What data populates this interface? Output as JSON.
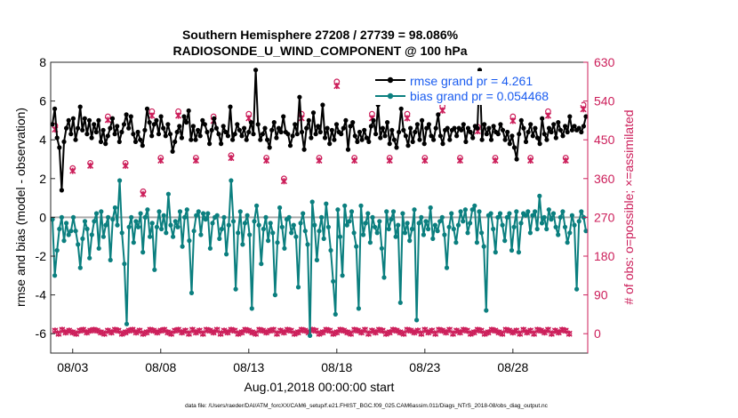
{
  "chart_data": {
    "type": "line",
    "title": "Southern Hemisphere 27208 / 27739 = 98.086%",
    "subtitle": "RADIOSONDE_U_WIND_COMPONENT @ 100 hPa",
    "xlabel": "Aug.01,2018 00:00:00 start",
    "ylabel_left": "rmse and bias (model - observation)",
    "ylabel_right": "# of obs: o=possible; ×=assimilated",
    "footnote": "data file: /Users/raeder/DAI/ATM_forcXX/CAM6_setup/f.e21.FHIST_BGC.f09_025.CAM6assim.011/Diags_NTrS_2018-08/obs_diag_output.nc",
    "ylim_left": [
      -7,
      8
    ],
    "yticks_left": [
      -6,
      -4,
      -2,
      0,
      2,
      4,
      6,
      8
    ],
    "ylim_right": [
      -45,
      630
    ],
    "yticks_right": [
      0,
      90,
      180,
      270,
      360,
      450,
      540,
      630
    ],
    "xlim_days": [
      0.75,
      31.25
    ],
    "xticks": [
      {
        "day": 2.0,
        "label": "08/03"
      },
      {
        "day": 7.0,
        "label": "08/08"
      },
      {
        "day": 12.0,
        "label": "08/13"
      },
      {
        "day": 17.0,
        "label": "08/18"
      },
      {
        "day": 22.0,
        "label": "08/23"
      },
      {
        "day": 27.0,
        "label": "08/28"
      }
    ],
    "zero_line": 0,
    "colors": {
      "rmse": "#000000",
      "bias": "#0b7f7f",
      "obs": "#cc1e5a",
      "zero": "#aaaaaa",
      "legend_text": "#1a5cf0",
      "right_axis": "#cc1e5a"
    },
    "series": [
      {
        "name": "rmse grand pr = 4.261",
        "axis": "left",
        "values": [
          4.8,
          5.6,
          4.1,
          3.6,
          1.4,
          3.9,
          4.6,
          5.0,
          4.3,
          5.1,
          4.0,
          4.6,
          5.7,
          4.5,
          5.1,
          4.3,
          5.0,
          4.1,
          4.8,
          4.4,
          5.0,
          3.9,
          4.5,
          3.8,
          4.2,
          4.6,
          5.1,
          4.3,
          4.7,
          3.9,
          4.4,
          4.8,
          5.3,
          4.6,
          5.2,
          4.3,
          3.9,
          4.4,
          4.0,
          3.7,
          4.5,
          5.6,
          4.9,
          4.2,
          4.8,
          5.0,
          4.3,
          5.2,
          4.6,
          4.2,
          4.8,
          4.3,
          3.4,
          3.9,
          4.4,
          4.7,
          4.1,
          5.2,
          4.9,
          5.5,
          4.0,
          4.7,
          4.0,
          4.5,
          4.2,
          5.0,
          4.8,
          4.4,
          3.8,
          4.5,
          5.1,
          4.6,
          4.3,
          3.8,
          4.7,
          4.4,
          4.2,
          5.7,
          4.0,
          4.3,
          4.8,
          4.5,
          4.2,
          4.6,
          4.0,
          4.4,
          4.9,
          4.3,
          7.6,
          4.8,
          4.0,
          4.3,
          4.6,
          4.0,
          3.6,
          4.5,
          4.9,
          4.1,
          4.6,
          4.4,
          5.2,
          4.4,
          4.3,
          3.7,
          4.2,
          4.8,
          4.3,
          6.2,
          4.4,
          3.5,
          4.6,
          5.0,
          4.1,
          5.4,
          4.3,
          4.7,
          4.4,
          5.8,
          4.1,
          4.6,
          3.8,
          4.5,
          4.0,
          4.8,
          4.4,
          4.3,
          4.6,
          5.0,
          3.5,
          4.7,
          4.9,
          4.2,
          3.9,
          4.4,
          4.0,
          4.5,
          4.1,
          3.9,
          4.7,
          5.0,
          4.3,
          5.8,
          4.1,
          4.6,
          4.2,
          4.9,
          3.8,
          4.5,
          4.0,
          3.6,
          4.4,
          5.6,
          4.5,
          4.2,
          3.7,
          4.6,
          3.9,
          4.4,
          4.8,
          4.0,
          5.0,
          3.8,
          4.6,
          4.8,
          4.2,
          4.0,
          4.6,
          5.3,
          4.2,
          3.8,
          4.5,
          4.6,
          4.0,
          4.5,
          4.6,
          4.2,
          4.6,
          4.5,
          4.8,
          3.9,
          4.6,
          4.4,
          4.1,
          4.7,
          4.6,
          7.6,
          4.0,
          4.8,
          4.3,
          4.6,
          4.0,
          4.7,
          4.4,
          4.3,
          4.8,
          4.5,
          4.0,
          4.4,
          3.8,
          4.2,
          3.6,
          3.0,
          4.3,
          5.0,
          4.6,
          3.9,
          4.4,
          4.8,
          4.2,
          4.6,
          4.1,
          3.8,
          5.1,
          4.3,
          4.0,
          4.6,
          4.4,
          4.8,
          4.1,
          4.9,
          4.5,
          4.2,
          4.7,
          4.4,
          5.2,
          4.5,
          4.7,
          4.5,
          4.6,
          4.4,
          4.7,
          5.2
        ]
      },
      {
        "name": "bias grand pr = 0.054468",
        "axis": "left",
        "values": [
          -0.1,
          -3.0,
          -1.7,
          -0.6,
          0.0,
          -1.2,
          -0.3,
          -0.9,
          -0.7,
          0.0,
          -0.7,
          -1.4,
          -2.6,
          -1.1,
          -0.2,
          -0.6,
          -2.1,
          -0.9,
          -0.2,
          0.2,
          -1.6,
          0.3,
          -1.0,
          -0.4,
          0.0,
          -2.2,
          -0.1,
          0.5,
          -0.4,
          1.9,
          -0.8,
          -2.4,
          -5.5,
          -0.5,
          0.0,
          -1.3,
          -0.2,
          -0.5,
          0.2,
          -1.8,
          0.0,
          0.4,
          -1.0,
          -0.3,
          -2.7,
          -0.5,
          0.3,
          -0.6,
          0.1,
          -0.8,
          1.2,
          -0.4,
          -1.0,
          -0.2,
          -0.5,
          0.3,
          -1.5,
          0.0,
          0.4,
          -1.2,
          -3.9,
          -0.7,
          0.1,
          0.3,
          -0.9,
          0.2,
          -0.1,
          0.2,
          -1.6,
          -0.3,
          0.0,
          0.1,
          -1.1,
          -0.6,
          0.0,
          -1.9,
          -0.4,
          1.9,
          -0.2,
          -3.7,
          -0.8,
          0.3,
          -1.4,
          -0.3,
          0.1,
          -0.9,
          -4.7,
          -0.2,
          0.6,
          -0.4,
          -2.4,
          -0.6,
          0.0,
          -1.2,
          -0.3,
          -0.8,
          -4.0,
          -1.3,
          0.5,
          -0.5,
          -1.6,
          -0.1,
          0.0,
          -0.8,
          -0.4,
          -1.0,
          -3.6,
          -0.3,
          0.2,
          -0.7,
          -1.4,
          -6.1,
          0.8,
          -0.4,
          -2.2,
          -0.7,
          0.0,
          -1.1,
          0.7,
          -0.5,
          -1.7,
          -3.3,
          -5.0,
          0.4,
          -1.0,
          -3.0,
          0.6,
          -0.4,
          -0.2,
          0.3,
          -0.8,
          -1.5,
          -4.7,
          0.6,
          -0.9,
          -0.3,
          0.2,
          -1.3,
          0.0,
          -0.5,
          -0.8,
          -0.2,
          -1.6,
          -3.1,
          0.3,
          -0.6,
          -0.1,
          0.3,
          -1.0,
          -0.4,
          -4.4,
          0.2,
          -0.8,
          -0.3,
          -1.2,
          -0.6,
          0.4,
          -5.3,
          -0.3,
          0.0,
          -0.9,
          -0.2,
          -0.6,
          0.5,
          -1.1,
          -0.4,
          -0.7,
          -0.2,
          0.0,
          -0.9,
          -2.6,
          -0.5,
          0.2,
          -0.6,
          -1.3,
          -0.4,
          0.3,
          -0.2,
          0.4,
          -0.8,
          -0.3,
          0.4,
          0.6,
          -1.3,
          0.3,
          -0.8,
          -1.5,
          -4.8,
          0.1,
          0.2,
          -0.6,
          -1.8,
          0.0,
          0.2,
          -0.4,
          -1.2,
          0.0,
          0.2,
          -1.7,
          -0.5,
          0.3,
          -1.8,
          -0.3,
          0.2,
          0.1,
          0.3,
          -0.8,
          0.1,
          0.3,
          -0.6,
          1.1,
          -0.3,
          0.0,
          -0.6,
          0.4,
          -0.1,
          0.2,
          -0.5,
          -0.9,
          0.0,
          0.3,
          -0.5,
          -1.3,
          -0.8,
          0.1,
          -0.4,
          -3.7,
          -0.2,
          0.3,
          0.0,
          -0.7
        ]
      },
      {
        "name": "# obs possible (pulse values)",
        "axis": "right",
        "note": "pairs [day, count] for the 12Z pulse; other soundings near 0",
        "values": [
          [
            1.0,
            483
          ],
          [
            2.0,
            384
          ],
          [
            3.0,
            396
          ],
          [
            4.0,
            504
          ],
          [
            5.0,
            396
          ],
          [
            6.0,
            330
          ],
          [
            6.5,
            516
          ],
          [
            7.0,
            408
          ],
          [
            8.0,
            516
          ],
          [
            9.0,
            408
          ],
          [
            10.0,
            504
          ],
          [
            11.0,
            414
          ],
          [
            12.0,
            510
          ],
          [
            13.0,
            408
          ],
          [
            14.0,
            360
          ],
          [
            15.0,
            510
          ],
          [
            16.0,
            408
          ],
          [
            17.0,
            585
          ],
          [
            18.0,
            408
          ],
          [
            19.0,
            510
          ],
          [
            20.0,
            408
          ],
          [
            21.0,
            510
          ],
          [
            22.0,
            408
          ],
          [
            23.0,
            528
          ],
          [
            24.0,
            408
          ],
          [
            25.0,
            480
          ],
          [
            26.0,
            408
          ],
          [
            27.0,
            504
          ],
          [
            28.0,
            408
          ],
          [
            29.0,
            516
          ],
          [
            30.0,
            408
          ],
          [
            31.0,
            531
          ]
        ]
      },
      {
        "name": "# obs assimilated (pulse values)",
        "axis": "right",
        "note": "pairs [day, count]",
        "values": [
          [
            1.0,
            474
          ],
          [
            2.0,
            378
          ],
          [
            3.0,
            390
          ],
          [
            4.0,
            496
          ],
          [
            5.0,
            390
          ],
          [
            6.0,
            324
          ],
          [
            6.5,
            506
          ],
          [
            7.0,
            402
          ],
          [
            8.0,
            506
          ],
          [
            9.0,
            402
          ],
          [
            10.0,
            494
          ],
          [
            11.0,
            408
          ],
          [
            12.0,
            500
          ],
          [
            13.0,
            402
          ],
          [
            14.0,
            354
          ],
          [
            15.0,
            500
          ],
          [
            16.0,
            402
          ],
          [
            17.0,
            575
          ],
          [
            18.0,
            402
          ],
          [
            19.0,
            500
          ],
          [
            20.0,
            402
          ],
          [
            21.0,
            500
          ],
          [
            22.0,
            402
          ],
          [
            23.0,
            518
          ],
          [
            24.0,
            402
          ],
          [
            25.0,
            470
          ],
          [
            26.0,
            402
          ],
          [
            27.0,
            494
          ],
          [
            28.0,
            402
          ],
          [
            29.0,
            506
          ],
          [
            30.0,
            402
          ],
          [
            31.0,
            521
          ]
        ]
      }
    ],
    "obs_baseline": [
      7,
      0,
      9,
      3,
      7,
      3,
      0,
      7,
      9,
      3,
      7,
      9,
      7,
      3,
      0,
      7,
      3,
      9,
      7,
      0,
      3,
      7,
      9,
      3,
      7,
      0,
      3,
      9,
      7,
      3,
      7,
      9,
      3,
      0,
      7,
      9,
      3,
      7,
      0,
      9,
      3,
      7,
      0,
      9,
      7,
      3,
      9,
      0,
      7,
      3,
      9,
      7,
      0,
      3,
      9,
      7,
      3,
      0,
      9,
      7,
      3,
      7,
      9,
      0,
      7,
      3,
      9,
      7,
      0,
      3,
      9,
      7,
      3,
      9,
      7,
      0,
      3,
      9,
      7,
      0,
      3,
      9,
      7,
      3,
      0,
      9,
      7,
      3,
      9,
      0,
      7,
      3,
      9,
      7,
      0,
      3,
      9,
      7,
      3,
      0,
      9,
      7,
      3,
      7,
      0,
      9,
      3,
      7,
      0,
      9,
      7,
      3,
      9,
      0,
      7,
      3,
      9,
      7,
      0,
      3,
      9,
      7,
      0,
      3,
      9,
      7,
      3,
      0,
      9,
      7,
      3,
      7,
      0,
      9,
      3,
      7,
      0,
      9,
      7,
      3,
      9,
      0,
      7,
      3,
      9,
      7,
      0
    ],
    "legend": [
      {
        "label": "rmse grand pr = 4.261",
        "series": 0
      },
      {
        "label": "bias grand pr = 0.054468",
        "series": 1
      }
    ]
  }
}
